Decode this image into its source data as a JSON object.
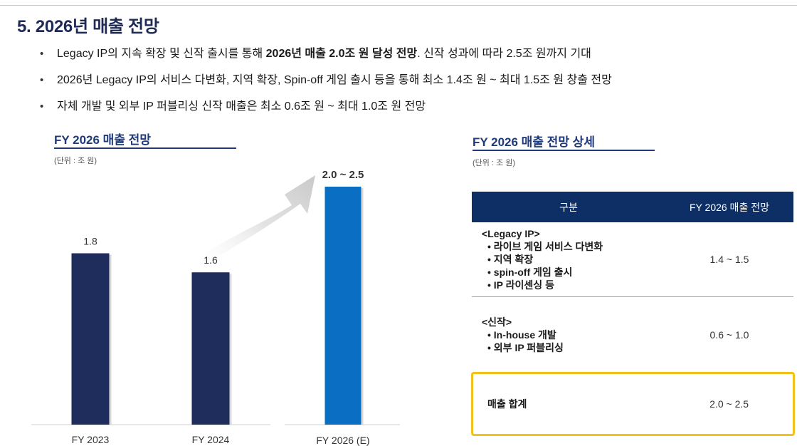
{
  "page": {
    "title": "5. 2026년 매출 전망"
  },
  "bullets": [
    {
      "pre": "Legacy IP의 지속 확장 및 신작 출시를 통해 ",
      "bold": "2026년 매출 2.0조 원 달성 전망",
      "post": ". 신작 성과에 따라 2.5조 원까지 기대"
    },
    {
      "pre": "2026년 Legacy IP의 서비스 다변화, 지역 확장, Spin-off 게임 출시 등을 통해  최소 1.4조 원 ~ 최대 1.5조 원 창출 전망",
      "bold": "",
      "post": ""
    },
    {
      "pre": "자체 개발 및 외부 IP 퍼블리싱 신작 매출은 최소 0.6조 원 ~ 최대 1.0조 원 전망",
      "bold": "",
      "post": ""
    }
  ],
  "chart_section": {
    "title": "FY 2026 매출 전망",
    "unit": "(단위 : 조 원)"
  },
  "chart_data": {
    "type": "bar",
    "title": "FY 2026 매출 전망",
    "categories": [
      "FY 2023",
      "FY 2024",
      "FY 2026 (E)"
    ],
    "values": [
      1.8,
      1.6,
      2.5
    ],
    "data_labels": [
      "1.8",
      "1.6",
      "2.0 ~ 2.5"
    ],
    "ylim": [
      0,
      2.5
    ],
    "colors": [
      "#1e2d5c",
      "#1e2d5c",
      "#0a6fc2"
    ],
    "grid": false,
    "legend": "none"
  },
  "table_section": {
    "title": "FY 2026 매출 전망 상세",
    "unit": "(단위 : 조 원)",
    "header": {
      "category": "구분",
      "value": "FY 2026 매출 전망"
    },
    "rows": [
      {
        "category": "<Legacy IP>",
        "items": [
          "• 라이브 게임 서비스 다변화",
          "• 지역 확장",
          "• spin-off 게임 출시",
          "• IP 라이센싱 등"
        ],
        "value": "1.4 ~ 1.5"
      },
      {
        "category": "<신작>",
        "items": [
          "• In-house 개발",
          "• 외부 IP 퍼블리싱"
        ],
        "value": "0.6 ~ 1.0"
      }
    ],
    "total": {
      "label": "매출 합계",
      "value": "2.0 ~ 2.5"
    }
  },
  "colors": {
    "navy": "#1f2a55",
    "table_header": "#0e2f66",
    "highlight_border": "#f2c21b",
    "bar_past": "#1e2d5c",
    "bar_forecast": "#0a6fc2"
  }
}
